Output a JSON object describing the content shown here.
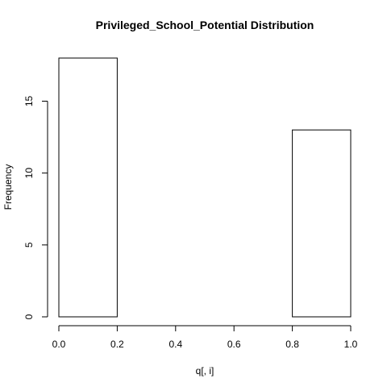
{
  "chart_data": {
    "type": "bar",
    "title": "Privileged_School_Potential Distribution",
    "xlabel": "q[, i]",
    "ylabel": "Frequency",
    "bins": [
      {
        "from": 0.0,
        "to": 0.2,
        "count": 18
      },
      {
        "from": 0.2,
        "to": 0.4,
        "count": 0
      },
      {
        "from": 0.4,
        "to": 0.6,
        "count": 0
      },
      {
        "from": 0.6,
        "to": 0.8,
        "count": 0
      },
      {
        "from": 0.8,
        "to": 1.0,
        "count": 13
      }
    ],
    "xlim": [
      0.0,
      1.0
    ],
    "ylim": [
      0,
      18
    ],
    "x_ticks": [
      "0.0",
      "0.2",
      "0.4",
      "0.6",
      "0.8",
      "1.0"
    ],
    "y_ticks": [
      "0",
      "5",
      "10",
      "15"
    ],
    "grid": false,
    "legend": false,
    "colors": {
      "bar_fill": "#ffffff",
      "bar_stroke": "#000000",
      "axis": "#000000"
    }
  }
}
